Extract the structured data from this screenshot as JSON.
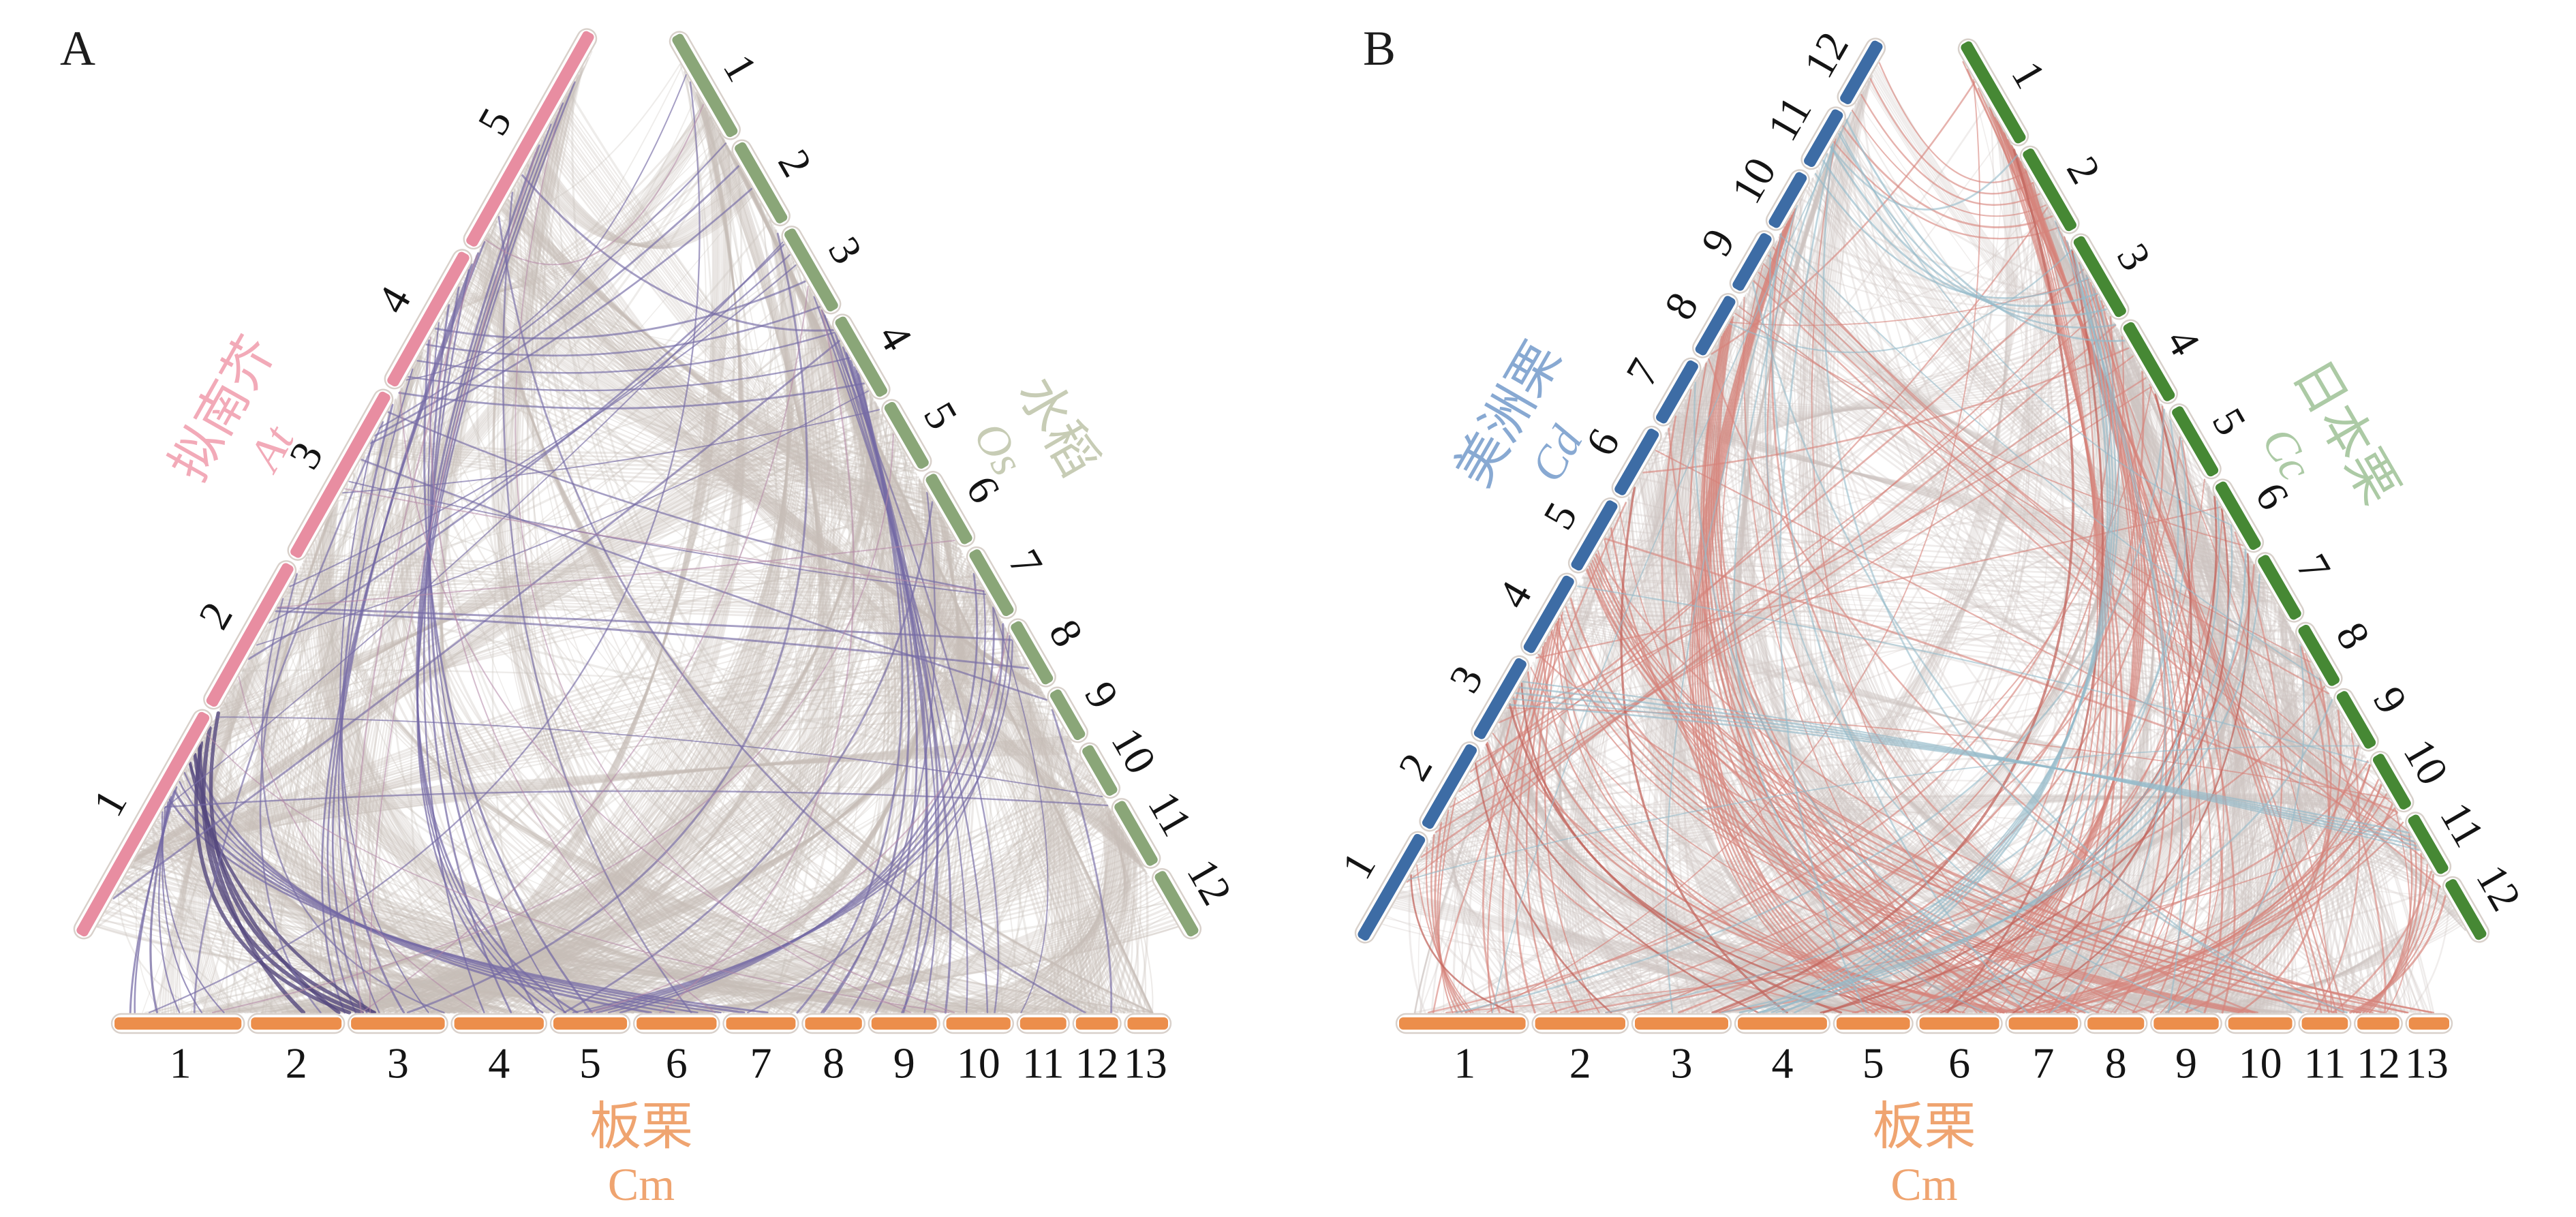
{
  "figure": {
    "panels": [
      {
        "label": "A",
        "left_axis": {
          "species": "拟南芥",
          "abbr": "At",
          "chromosomes": [
            "1",
            "2",
            "3",
            "4",
            "5"
          ],
          "size_fractions": [
            0.25,
            0.165,
            0.19,
            0.155,
            0.24
          ],
          "bar_color": "#e88da1",
          "label_color": "#f2aab8"
        },
        "right_axis": {
          "species": "水稻",
          "abbr": "Os",
          "chromosomes": [
            "1",
            "2",
            "3",
            "4",
            "5",
            "6",
            "7",
            "8",
            "9",
            "10",
            "11",
            "12"
          ],
          "size_fractions": [
            0.116,
            0.096,
            0.098,
            0.095,
            0.08,
            0.084,
            0.08,
            0.076,
            0.062,
            0.062,
            0.078,
            0.074
          ],
          "bar_color": "#8aa678",
          "label_color": "#c7ccb5"
        },
        "bottom_axis": {
          "species": "板栗",
          "abbr": "Cm",
          "chromosomes": [
            "1",
            "2",
            "3",
            "4",
            "5",
            "6",
            "7",
            "8",
            "9",
            "10",
            "11",
            "12",
            "13"
          ],
          "size_fractions": [
            0.125,
            0.095,
            0.098,
            0.094,
            0.079,
            0.085,
            0.075,
            0.063,
            0.071,
            0.07,
            0.053,
            0.049,
            0.043
          ],
          "bar_color": "#ec8e4b",
          "label_color": "#efa470"
        },
        "ribbon_colors": {
          "background": "#c7bfb9",
          "highlights": [
            "#746aa5",
            "#55497e",
            "#b387a5"
          ]
        }
      },
      {
        "label": "B",
        "left_axis": {
          "species": "美洲栗",
          "abbr": "Cd",
          "chromosomes": [
            "1",
            "2",
            "3",
            "4",
            "5",
            "6",
            "7",
            "8",
            "9",
            "10",
            "11",
            "12"
          ],
          "size_fractions": [
            0.12,
            0.1,
            0.096,
            0.092,
            0.084,
            0.08,
            0.076,
            0.072,
            0.07,
            0.068,
            0.07,
            0.072
          ],
          "bar_color": "#3d6ca5",
          "label_color": "#88a9d2"
        },
        "right_axis": {
          "species": "日本栗",
          "abbr": "Cc",
          "chromosomes": [
            "1",
            "2",
            "3",
            "4",
            "5",
            "6",
            "7",
            "8",
            "9",
            "10",
            "11",
            "12"
          ],
          "size_fractions": [
            0.115,
            0.098,
            0.096,
            0.094,
            0.084,
            0.082,
            0.078,
            0.074,
            0.07,
            0.068,
            0.072,
            0.069
          ],
          "bar_color": "#468834",
          "label_color": "#accaa5"
        },
        "bottom_axis": {
          "species": "板栗",
          "abbr": "Cm",
          "chromosomes": [
            "1",
            "2",
            "3",
            "4",
            "5",
            "6",
            "7",
            "8",
            "9",
            "10",
            "11",
            "12",
            "13"
          ],
          "size_fractions": [
            0.125,
            0.095,
            0.098,
            0.094,
            0.079,
            0.085,
            0.075,
            0.063,
            0.071,
            0.07,
            0.053,
            0.049,
            0.043
          ],
          "bar_color": "#ec8e4b",
          "label_color": "#efa470"
        },
        "ribbon_colors": {
          "background": "#cdc5c0",
          "highlights": [
            "#d6837b",
            "#c2665e",
            "#94bac9"
          ]
        }
      }
    ]
  }
}
